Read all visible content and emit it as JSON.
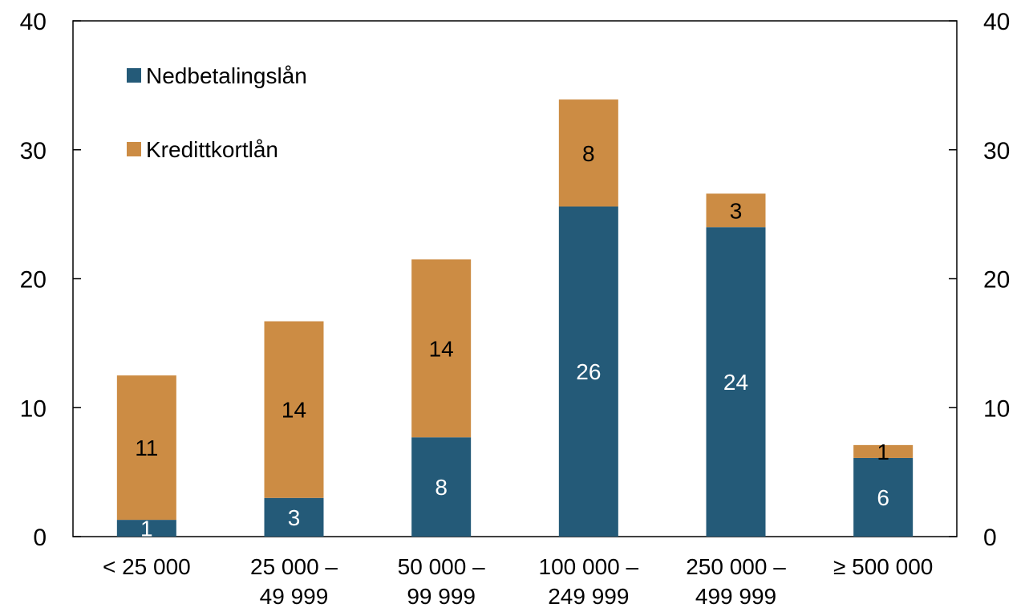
{
  "chart_data": {
    "type": "bar",
    "stacked": true,
    "categories": [
      [
        "< 25 000"
      ],
      [
        "25 000 –",
        "49 999"
      ],
      [
        "50 000 –",
        "99 999"
      ],
      [
        "100 000 –",
        "249 999"
      ],
      [
        "250 000 –",
        "499 999"
      ],
      [
        "≥ 500 000"
      ]
    ],
    "series": [
      {
        "name": "Nedbetalingslån",
        "color": "#245a78",
        "values": [
          1.3,
          3.0,
          7.7,
          25.6,
          24.0,
          6.1
        ],
        "labels": [
          "1",
          "3",
          "8",
          "26",
          "24",
          "6"
        ],
        "label_color": "#ffffff"
      },
      {
        "name": "Kredittkortlån",
        "color": "#cc8c44",
        "values": [
          11.2,
          13.7,
          13.8,
          8.3,
          2.6,
          1.0
        ],
        "labels": [
          "11",
          "14",
          "14",
          "8",
          "3",
          "1"
        ],
        "label_color": "#000000"
      }
    ],
    "ylim": [
      0,
      40
    ],
    "yticks": [
      "0",
      "10",
      "20",
      "30",
      "40"
    ],
    "right_axis": true,
    "legend_position": "top-left",
    "grid": false
  }
}
